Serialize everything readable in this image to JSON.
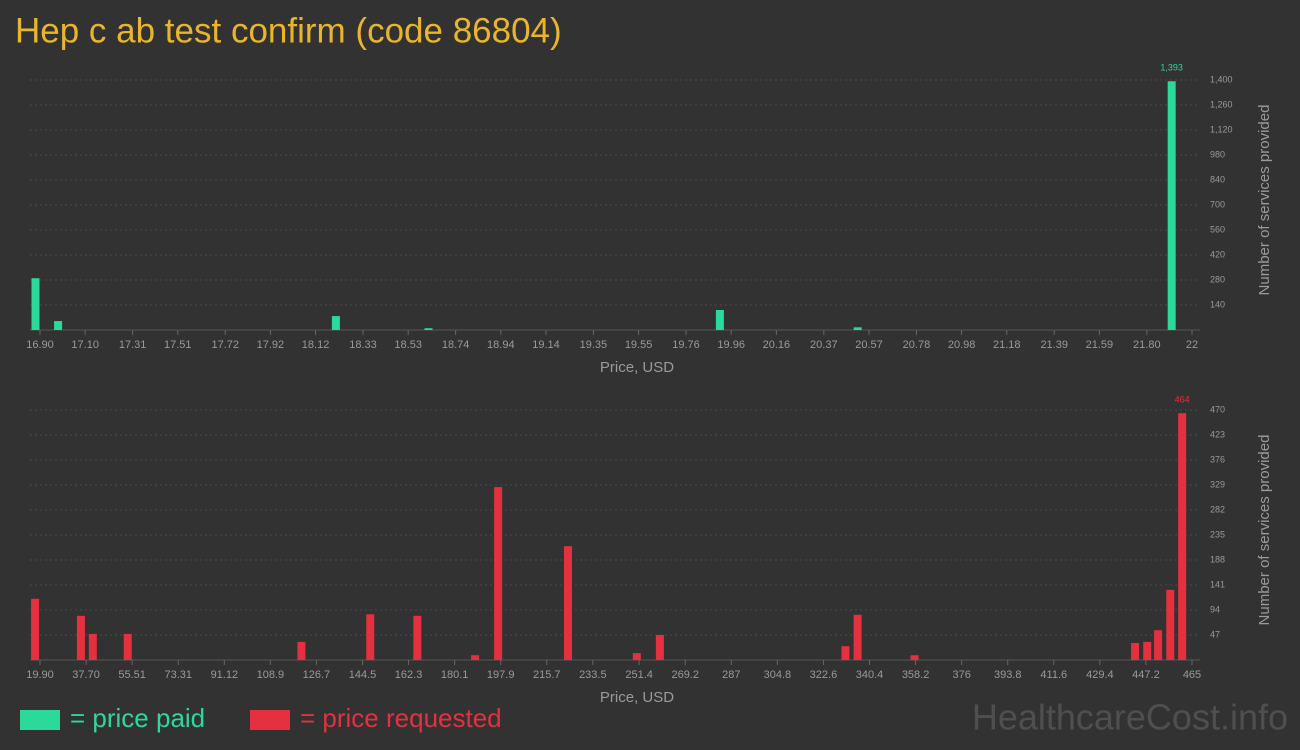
{
  "title": "Hep c ab test confirm (code 86804)",
  "watermark": "HealthcareCost.info",
  "legend": [
    {
      "label": "= price paid",
      "color": "#2bd99a"
    },
    {
      "label": "= price requested",
      "color": "#e5303f"
    }
  ],
  "chart_data": [
    {
      "type": "bar",
      "xlabel": "Price, USD",
      "ylabel": "Number of services provided",
      "grid": true,
      "xlim": [
        16.9,
        22
      ],
      "ylim": [
        0,
        1400
      ],
      "xticks": [
        {
          "value": 16.9,
          "label": "16.90"
        },
        {
          "value": 17.1,
          "label": "17.10"
        },
        17.31,
        17.51,
        17.72,
        17.92,
        18.12,
        18.33,
        18.53,
        18.74,
        18.94,
        19.14,
        19.35,
        19.55,
        19.76,
        19.96,
        20.16,
        20.37,
        20.57,
        20.78,
        20.98,
        21.18,
        21.39,
        21.59,
        {
          "value": 21.8,
          "label": "21.80"
        },
        22
      ],
      "yticks": [
        140,
        280,
        420,
        560,
        700,
        840,
        980,
        {
          "value": 1120,
          "label": "1,120"
        },
        {
          "value": 1260,
          "label": "1,260"
        },
        {
          "value": 1400,
          "label": "1,400"
        }
      ],
      "x": [
        16.88,
        16.98,
        18.21,
        18.62,
        19.91,
        20.52,
        21.91
      ],
      "series": [
        {
          "color": "#2bd99a",
          "values": [
            290,
            50,
            78,
            10,
            112,
            15,
            1393
          ],
          "value_labels": [
            null,
            null,
            null,
            null,
            null,
            null,
            "1,393"
          ]
        }
      ]
    },
    {
      "type": "bar",
      "xlabel": "Price, USD",
      "ylabel": "Number of services provided",
      "grid": true,
      "xlim": [
        19.9,
        465
      ],
      "ylim": [
        0,
        470
      ],
      "xticks": [
        {
          "value": 19.9,
          "label": "19.90"
        },
        {
          "value": 37.7,
          "label": "37.70"
        },
        55.51,
        73.31,
        91.12,
        108.9,
        126.7,
        144.5,
        162.3,
        180.1,
        197.9,
        215.7,
        233.5,
        251.4,
        269.2,
        287,
        304.8,
        322.6,
        340.4,
        358.2,
        376,
        393.8,
        411.6,
        429.4,
        447.2,
        465
      ],
      "yticks": [
        47,
        94,
        141,
        188,
        235,
        282,
        329,
        376,
        423,
        470
      ],
      "x": [
        18.0,
        35.7,
        40.3,
        53.8,
        120.9,
        147.5,
        165.7,
        188.0,
        196.9,
        223.9,
        250.5,
        259.4,
        331.1,
        335.8,
        357.8,
        443.0,
        447.7,
        451.9,
        456.6,
        461.2
      ],
      "series": [
        {
          "color": "#e5303f",
          "values": [
            115,
            83,
            49,
            49,
            34,
            86,
            83,
            9,
            325,
            214,
            13,
            47,
            26,
            85,
            9,
            32,
            34,
            56,
            132,
            464
          ],
          "value_labels": [
            null,
            null,
            null,
            null,
            null,
            null,
            null,
            null,
            null,
            null,
            null,
            null,
            null,
            null,
            null,
            null,
            null,
            null,
            null,
            "464"
          ]
        }
      ]
    }
  ]
}
